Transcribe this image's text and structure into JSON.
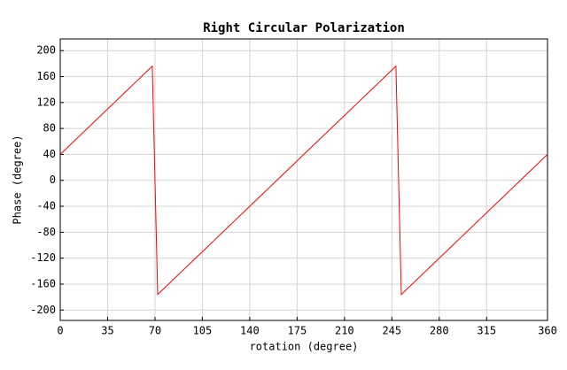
{
  "chart_data": {
    "type": "line",
    "title": "Right Circular Polarization",
    "x_label": "rotation (degree)",
    "y_label": "Phase (degree)",
    "x": [
      0,
      5,
      10,
      15,
      20,
      25,
      30,
      35,
      40,
      45,
      50,
      55,
      60,
      65,
      68,
      72,
      75,
      80,
      85,
      90,
      95,
      100,
      105,
      110,
      115,
      120,
      125,
      130,
      135,
      140,
      145,
      150,
      155,
      160,
      165,
      170,
      175,
      180,
      185,
      190,
      195,
      200,
      205,
      210,
      215,
      220,
      225,
      230,
      235,
      240,
      245,
      248,
      252,
      255,
      260,
      265,
      270,
      275,
      280,
      285,
      290,
      295,
      300,
      305,
      310,
      315,
      320,
      325,
      330,
      335,
      340,
      345,
      350,
      355,
      360
    ],
    "values": [
      40,
      50,
      60,
      70,
      80,
      90,
      100,
      110,
      120,
      130,
      140,
      150,
      160,
      170,
      176,
      -176,
      -170,
      -160,
      -150,
      -140,
      -130,
      -120,
      -110,
      -100,
      -90,
      -80,
      -70,
      -60,
      -50,
      -40,
      -30,
      -20,
      -10,
      0,
      10,
      20,
      30,
      40,
      50,
      60,
      70,
      80,
      90,
      100,
      110,
      120,
      130,
      140,
      150,
      160,
      170,
      176,
      -176,
      -170,
      -160,
      -150,
      -140,
      -130,
      -120,
      -110,
      -100,
      -90,
      -80,
      -70,
      -60,
      -50,
      -40,
      -30,
      -20,
      -10,
      0,
      10,
      20,
      30,
      40
    ],
    "color": "#ff0000",
    "xlim": [
      0,
      360
    ],
    "xticks": [
      0,
      35,
      70,
      105,
      140,
      175,
      210,
      245,
      280,
      315,
      360
    ],
    "ylim": [
      -216,
      218
    ],
    "yticks": [
      -200,
      -160,
      -120,
      -80,
      -40,
      0,
      40,
      80,
      120,
      160,
      200
    ],
    "grid": true
  }
}
